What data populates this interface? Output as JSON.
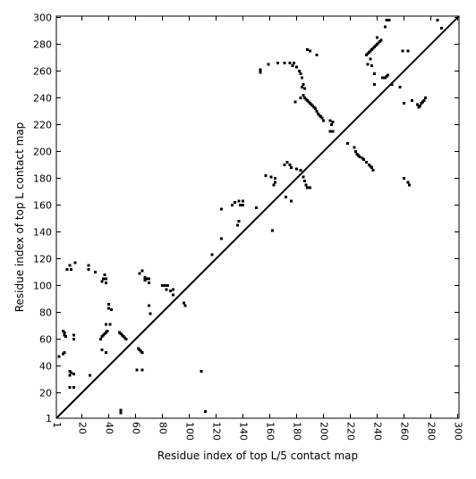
{
  "chart_data": {
    "type": "scatter",
    "title": "",
    "xlabel": "Residue index of top L/5 contact map",
    "ylabel": "Residue index of top L contact map",
    "xlim": [
      1,
      301
    ],
    "ylim": [
      1,
      301
    ],
    "grid": false,
    "legend": "",
    "xticks": [
      1,
      20,
      40,
      60,
      80,
      100,
      120,
      140,
      160,
      180,
      200,
      220,
      240,
      260,
      280,
      300
    ],
    "yticks": [
      1,
      20,
      40,
      60,
      80,
      100,
      120,
      140,
      160,
      180,
      200,
      220,
      240,
      260,
      280,
      300
    ],
    "diagonal": [
      [
        1,
        1
      ],
      [
        301,
        301
      ]
    ],
    "upper_points": [
      [
        153,
        261
      ],
      [
        153,
        259
      ],
      [
        159,
        265
      ],
      [
        166,
        266
      ],
      [
        171,
        266
      ],
      [
        175,
        266
      ],
      [
        178,
        266
      ],
      [
        177,
        264
      ],
      [
        180,
        263
      ],
      [
        182,
        260
      ],
      [
        183,
        258
      ],
      [
        184,
        255
      ],
      [
        185,
        250
      ],
      [
        184,
        248
      ],
      [
        186,
        247
      ],
      [
        185,
        242
      ],
      [
        186,
        240
      ],
      [
        187,
        239
      ],
      [
        188,
        238
      ],
      [
        189,
        237
      ],
      [
        190,
        236
      ],
      [
        191,
        235
      ],
      [
        192,
        234
      ],
      [
        193,
        233
      ],
      [
        194,
        232
      ],
      [
        195,
        230
      ],
      [
        196,
        228
      ],
      [
        197,
        227
      ],
      [
        198,
        226
      ],
      [
        199,
        225
      ],
      [
        200,
        223
      ],
      [
        179,
        237
      ],
      [
        183,
        240
      ],
      [
        188,
        276
      ],
      [
        190,
        275
      ],
      [
        195,
        272
      ],
      [
        205,
        223
      ],
      [
        207,
        222
      ],
      [
        206,
        220
      ],
      [
        205,
        215
      ],
      [
        207,
        215
      ],
      [
        232,
        272
      ],
      [
        233,
        273
      ],
      [
        234,
        274
      ],
      [
        235,
        275
      ],
      [
        236,
        276
      ],
      [
        237,
        277
      ],
      [
        238,
        278
      ],
      [
        239,
        279
      ],
      [
        240,
        280
      ],
      [
        241,
        281
      ],
      [
        242,
        282
      ],
      [
        243,
        283
      ],
      [
        235,
        269
      ],
      [
        233,
        265
      ],
      [
        236,
        264
      ],
      [
        238,
        258
      ],
      [
        238,
        250
      ],
      [
        240,
        285
      ],
      [
        244,
        255
      ],
      [
        246,
        255
      ],
      [
        247,
        256
      ],
      [
        248,
        257
      ],
      [
        246,
        293
      ],
      [
        247,
        298
      ],
      [
        249,
        298
      ],
      [
        251,
        250
      ],
      [
        257,
        248
      ],
      [
        259,
        275
      ],
      [
        263,
        275
      ],
      [
        260,
        236
      ],
      [
        266,
        238
      ],
      [
        270,
        235
      ],
      [
        271,
        233
      ],
      [
        272,
        234
      ],
      [
        273,
        236
      ],
      [
        274,
        237
      ],
      [
        275,
        238
      ],
      [
        276,
        240
      ],
      [
        285,
        298
      ],
      [
        288,
        292
      ]
    ],
    "lower_points": [
      [
        3,
        47
      ],
      [
        6,
        49
      ],
      [
        7,
        50
      ],
      [
        6,
        66
      ],
      [
        7,
        65
      ],
      [
        7,
        63
      ],
      [
        8,
        62
      ],
      [
        9,
        112
      ],
      [
        11,
        115
      ],
      [
        12,
        112
      ],
      [
        11,
        36
      ],
      [
        11,
        33
      ],
      [
        12,
        35
      ],
      [
        14,
        34
      ],
      [
        14,
        63
      ],
      [
        14,
        60
      ],
      [
        15,
        117
      ],
      [
        11,
        24
      ],
      [
        14,
        24
      ],
      [
        25,
        115
      ],
      [
        25,
        112
      ],
      [
        26,
        33
      ],
      [
        30,
        110
      ],
      [
        34,
        60
      ],
      [
        35,
        62
      ],
      [
        36,
        63
      ],
      [
        37,
        64
      ],
      [
        38,
        65
      ],
      [
        39,
        66
      ],
      [
        35,
        103
      ],
      [
        36,
        105
      ],
      [
        38,
        105
      ],
      [
        38,
        102
      ],
      [
        37,
        108
      ],
      [
        38,
        71
      ],
      [
        41,
        71
      ],
      [
        40,
        86
      ],
      [
        40,
        83
      ],
      [
        42,
        82
      ],
      [
        35,
        52
      ],
      [
        38,
        50
      ],
      [
        48,
        65
      ],
      [
        49,
        64
      ],
      [
        50,
        63
      ],
      [
        51,
        62
      ],
      [
        52,
        61
      ],
      [
        53,
        60
      ],
      [
        49,
        7
      ],
      [
        49,
        5
      ],
      [
        62,
        53
      ],
      [
        63,
        52
      ],
      [
        64,
        51
      ],
      [
        65,
        50
      ],
      [
        61,
        37
      ],
      [
        65,
        37
      ],
      [
        63,
        109
      ],
      [
        65,
        111
      ],
      [
        67,
        106
      ],
      [
        67,
        104
      ],
      [
        68,
        105
      ],
      [
        70,
        105
      ],
      [
        70,
        102
      ],
      [
        70,
        85
      ],
      [
        71,
        79
      ],
      [
        80,
        100
      ],
      [
        82,
        100
      ],
      [
        84,
        100
      ],
      [
        83,
        97
      ],
      [
        86,
        96
      ],
      [
        88,
        97
      ],
      [
        88,
        93
      ],
      [
        96,
        87
      ],
      [
        97,
        85
      ],
      [
        109,
        36
      ],
      [
        112,
        6
      ],
      [
        117,
        123
      ],
      [
        124,
        157
      ],
      [
        124,
        135
      ],
      [
        132,
        160
      ],
      [
        134,
        162
      ],
      [
        137,
        163
      ],
      [
        140,
        163
      ],
      [
        138,
        160
      ],
      [
        140,
        160
      ],
      [
        137,
        148
      ],
      [
        136,
        145
      ],
      [
        150,
        158
      ],
      [
        157,
        182
      ],
      [
        161,
        181
      ],
      [
        164,
        180
      ],
      [
        164,
        177
      ],
      [
        163,
        175
      ],
      [
        162,
        141
      ],
      [
        171,
        190
      ],
      [
        173,
        192
      ],
      [
        175,
        190
      ],
      [
        176,
        188
      ],
      [
        180,
        187
      ],
      [
        172,
        166
      ],
      [
        176,
        163
      ],
      [
        183,
        186
      ],
      [
        185,
        181
      ],
      [
        186,
        178
      ],
      [
        187,
        175
      ],
      [
        188,
        173
      ],
      [
        190,
        173
      ],
      [
        218,
        206
      ],
      [
        223,
        203
      ],
      [
        224,
        200
      ],
      [
        225,
        198
      ],
      [
        226,
        197
      ],
      [
        227,
        196
      ],
      [
        229,
        195
      ],
      [
        230,
        194
      ],
      [
        232,
        192
      ],
      [
        234,
        190
      ],
      [
        235,
        189
      ],
      [
        236,
        188
      ],
      [
        237,
        186
      ],
      [
        260,
        180
      ],
      [
        263,
        177
      ],
      [
        264,
        175
      ]
    ]
  }
}
